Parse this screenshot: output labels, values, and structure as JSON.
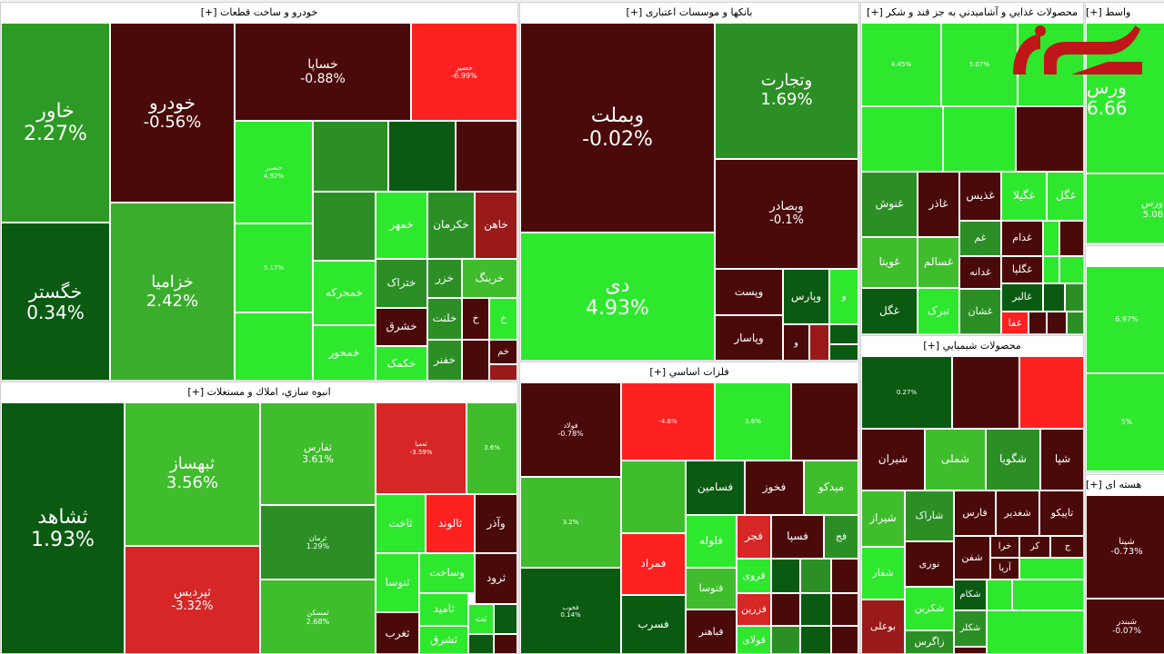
{
  "colors": {
    "dark_red": "#4a0a0a",
    "red": "#d62626",
    "bright_red": "#ff2020",
    "dark_green": "#0b5a12",
    "mid_green": "#2c8f26",
    "green": "#3fbd2c",
    "bright_green": "#2ee82e"
  },
  "logo": {
    "name": "rokna-logo"
  },
  "sectors": [
    {
      "title": "خودرو و ساخت قطعات [+]",
      "tiles": [
        {
          "n": "خاور",
          "p": "2.27%"
        },
        {
          "n": "خگستر",
          "p": "0.34%"
        },
        {
          "n": "خودرو",
          "p": "-0.56%"
        },
        {
          "n": "خزامیا",
          "p": "2.42%"
        },
        {
          "n": "خساپا",
          "p": "-0.88%"
        },
        {
          "n": "خصیر",
          "p": "-6.99%"
        },
        {
          "n": "خمهر",
          "p": ""
        },
        {
          "n": "خکرمان",
          "p": ""
        },
        {
          "n": "خاهن",
          "p": ""
        },
        {
          "n": "خمحرکه",
          "p": ""
        },
        {
          "n": "ختراک",
          "p": ""
        },
        {
          "n": "خزر",
          "p": ""
        },
        {
          "n": "خرینگ",
          "p": ""
        },
        {
          "n": "خشرق",
          "p": ""
        },
        {
          "n": "خلنت",
          "p": ""
        },
        {
          "n": "خمحور",
          "p": ""
        },
        {
          "n": "خکمک",
          "p": ""
        },
        {
          "n": "خفنر",
          "p": ""
        },
        {
          "n": "خنصیر",
          "p": "4.92%"
        },
        {
          "n": "",
          "p": "5.17%"
        }
      ]
    },
    {
      "title": "بانکها و موسسات اعتباری [+]",
      "tiles": [
        {
          "n": "وبملت",
          "p": "-0.02%"
        },
        {
          "n": "دی",
          "p": "4.93%"
        },
        {
          "n": "وتجارت",
          "p": "1.69%"
        },
        {
          "n": "وبصادر",
          "p": "-0.1%"
        },
        {
          "n": "وپست",
          "p": ""
        },
        {
          "n": "وپارس",
          "p": ""
        },
        {
          "n": "وپاسار",
          "p": ""
        }
      ]
    },
    {
      "title": "محصولات غذايي و آشاميدني به جز قند و شكر [+]",
      "tiles": [
        {
          "n": "",
          "p": "4.45%"
        },
        {
          "n": "",
          "p": "5.07%"
        },
        {
          "n": "غذیس",
          "p": ""
        },
        {
          "n": "غگیلا",
          "p": ""
        },
        {
          "n": "غگل",
          "p": ""
        },
        {
          "n": "غنوش",
          "p": ""
        },
        {
          "n": "غاذر",
          "p": ""
        },
        {
          "n": "غدام",
          "p": ""
        },
        {
          "n": "غم",
          "p": ""
        },
        {
          "n": "غویتا",
          "p": ""
        },
        {
          "n": "غسالم",
          "p": ""
        },
        {
          "n": "غگلپا",
          "p": ""
        },
        {
          "n": "غدانه",
          "p": ""
        },
        {
          "n": "غگل",
          "p": ""
        },
        {
          "n": "تبرک",
          "p": ""
        },
        {
          "n": "غالبر",
          "p": ""
        },
        {
          "n": "غشان",
          "p": ""
        },
        {
          "n": "غفا",
          "p": ""
        }
      ]
    },
    {
      "title": "واسط [+]",
      "tiles": [
        {
          "n": "ورس",
          "p": "6.66"
        },
        {
          "n": "ورس",
          "p": "5.08"
        },
        {
          "n": "",
          "p": "6.97%"
        },
        {
          "n": "",
          "p": "5%"
        }
      ]
    },
    {
      "title": "محصولات شيميايي [+]",
      "tiles": [
        {
          "n": "",
          "p": "0.27%"
        },
        {
          "n": "شیران",
          "p": ""
        },
        {
          "n": "شملی",
          "p": ""
        },
        {
          "n": "شگویا",
          "p": ""
        },
        {
          "n": "شپا",
          "p": ""
        },
        {
          "n": "شیراز",
          "p": ""
        },
        {
          "n": "شاراک",
          "p": ""
        },
        {
          "n": "فارس",
          "p": ""
        },
        {
          "n": "شغدیر",
          "p": ""
        },
        {
          "n": "تاپیکو",
          "p": ""
        },
        {
          "n": "نوری",
          "p": ""
        },
        {
          "n": "شفن",
          "p": ""
        },
        {
          "n": "خرا",
          "p": ""
        },
        {
          "n": "کر",
          "p": ""
        },
        {
          "n": "شکام",
          "p": ""
        },
        {
          "n": "آریا",
          "p": ""
        },
        {
          "n": "شفار",
          "p": ""
        },
        {
          "n": "شکربن",
          "p": ""
        },
        {
          "n": "شکلر",
          "p": ""
        },
        {
          "n": "بوعلی",
          "p": ""
        },
        {
          "n": "زاگرس",
          "p": ""
        },
        {
          "n": "شگل",
          "p": ""
        }
      ]
    },
    {
      "title": "انبوه سازي، املاك و مستغلات [+]",
      "tiles": [
        {
          "n": "ثشاهد",
          "p": "1.93%"
        },
        {
          "n": "ثبهساز",
          "p": "3.56%"
        },
        {
          "n": "ثپردیس",
          "p": "-3.32%"
        },
        {
          "n": "ثفارس",
          "p": "3.61%"
        },
        {
          "n": "ثرمان",
          "p": "1.29%"
        },
        {
          "n": "ثمسکن",
          "p": "2.68%"
        },
        {
          "n": "ثعمیا",
          "p": "-3.59%"
        },
        {
          "n": "",
          "p": "3.6%"
        },
        {
          "n": "ثاخت",
          "p": ""
        },
        {
          "n": "ثالوند",
          "p": ""
        },
        {
          "n": "وآذر",
          "p": ""
        },
        {
          "n": "وساخت",
          "p": ""
        },
        {
          "n": "ثنوسا",
          "p": ""
        },
        {
          "n": "ثرود",
          "p": ""
        },
        {
          "n": "ثامید",
          "p": ""
        },
        {
          "n": "ثت",
          "p": ""
        },
        {
          "n": "ثغرب",
          "p": ""
        },
        {
          "n": "ثشرق",
          "p": ""
        }
      ]
    },
    {
      "title": "فلزات اساسي [+]",
      "tiles": [
        {
          "n": "فولاد",
          "p": "-0.78%"
        },
        {
          "n": "",
          "p": "-4.6%"
        },
        {
          "n": "",
          "p": "3.6%"
        },
        {
          "n": "",
          "p": "3.2%"
        },
        {
          "n": "فسامین",
          "p": ""
        },
        {
          "n": "فخوز",
          "p": ""
        },
        {
          "n": "میدکو",
          "p": ""
        },
        {
          "n": "فلوله",
          "p": ""
        },
        {
          "n": "فجر",
          "p": ""
        },
        {
          "n": "فسپا",
          "p": ""
        },
        {
          "n": "فج",
          "p": ""
        },
        {
          "n": "فمراد",
          "p": ""
        },
        {
          "n": "فروی",
          "p": ""
        },
        {
          "n": "فتوسا",
          "p": ""
        },
        {
          "n": "فزرین",
          "p": ""
        },
        {
          "n": "فسرب",
          "p": ""
        },
        {
          "n": "فولای",
          "p": ""
        },
        {
          "n": "فباهنر",
          "p": ""
        },
        {
          "n": "فخوب",
          "p": "0.14%"
        }
      ]
    },
    {
      "title": "هسته ای [+]",
      "tiles": [
        {
          "n": "شپنا",
          "p": "-0.73%"
        },
        {
          "n": "شبندر",
          "p": "-0.07%"
        }
      ]
    }
  ]
}
